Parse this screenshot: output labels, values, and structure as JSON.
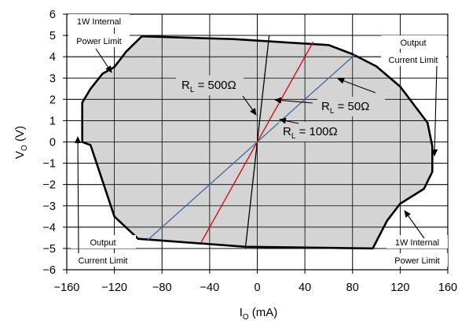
{
  "chart_data": {
    "type": "line",
    "xlabel": {
      "main": "I",
      "sub": "O",
      "unit": " (mA)"
    },
    "ylabel": {
      "main": "V",
      "sub": "O",
      "unit": " (V)"
    },
    "xlim": [
      -160,
      160
    ],
    "ylim": [
      -6,
      6
    ],
    "x_ticks": [
      -160,
      -120,
      -80,
      -40,
      0,
      40,
      80,
      120,
      160
    ],
    "y_ticks": [
      6,
      5,
      4,
      3,
      2,
      1,
      0,
      -1,
      -2,
      -3,
      -4,
      -5,
      -6
    ],
    "grid": true,
    "region": {
      "name": "Operating region",
      "fill": "#d4d4d4",
      "boundary": [
        [
          -97,
          4.96
        ],
        [
          -20,
          4.83
        ],
        [
          60,
          4.55
        ],
        [
          80,
          4.12
        ],
        [
          100,
          3.55
        ],
        [
          120,
          2.6
        ],
        [
          143,
          0.9
        ],
        [
          147,
          -0.2
        ],
        [
          147,
          -1.4
        ],
        [
          140,
          -2.2
        ],
        [
          120,
          -2.9
        ],
        [
          109,
          -3.7
        ],
        [
          97,
          -5.0
        ],
        [
          -10,
          -4.92
        ],
        [
          -100,
          -4.55
        ],
        [
          -120,
          -3.5
        ],
        [
          -140,
          -0.15
        ],
        [
          -147,
          0.0
        ],
        [
          -147,
          1.85
        ],
        [
          -140,
          2.5
        ],
        [
          -130,
          3.2
        ],
        [
          -120,
          3.52
        ],
        [
          -110,
          4.25
        ]
      ]
    },
    "series": [
      {
        "name": "R_L = 500Ω",
        "color": "#000000",
        "points": [
          [
            -10,
            -5.0
          ],
          [
            10,
            5.0
          ]
        ]
      },
      {
        "name": "R_L = 100Ω",
        "color": "#e00000",
        "points": [
          [
            -47,
            -4.7
          ],
          [
            47,
            4.7
          ]
        ]
      },
      {
        "name": "R_L = 50Ω",
        "color": "#3a6ea0",
        "points": [
          [
            -92,
            -4.6
          ],
          [
            82,
            4.1
          ]
        ]
      }
    ],
    "annotations": {
      "tl_line1": "1W Internal",
      "tl_line2": "Power Limit",
      "tr_line1": "Output",
      "tr_line2": "Current Limit",
      "bl_line1": "Output",
      "bl_line2": "Current Limit",
      "br_line1": "1W Internal",
      "br_line2": "Power Limit"
    },
    "series_labels": {
      "r500": {
        "main": "R",
        "sub": "L",
        "rest": " = 500Ω"
      },
      "r100": {
        "main": "R",
        "sub": "L",
        "rest": " = 100Ω"
      },
      "r50": {
        "main": "R",
        "sub": "L",
        "rest": " = 50Ω"
      }
    }
  }
}
